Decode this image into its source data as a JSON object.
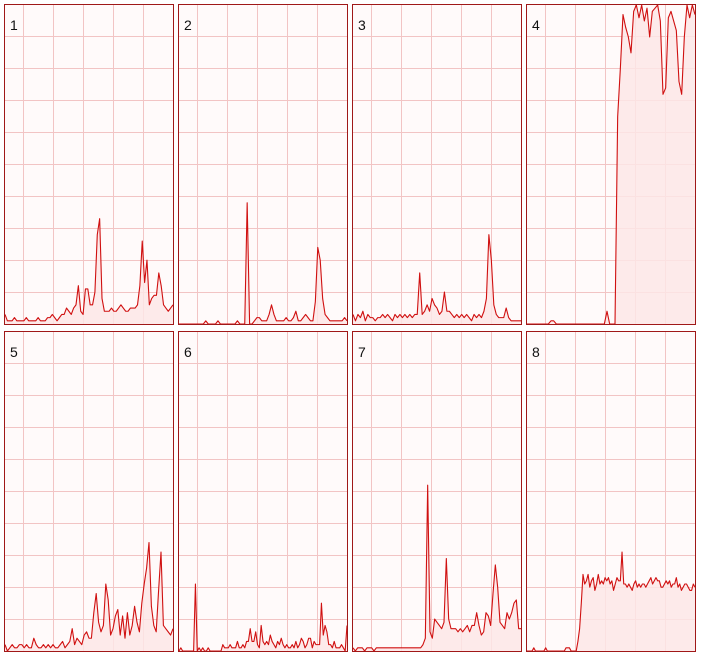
{
  "colors": {
    "line": "#d01010",
    "fill": "#fde6e6",
    "grid": "#f2c4c4",
    "border": "#a01818",
    "background": "#fffafa"
  },
  "chart_data": [
    {
      "type": "area",
      "label": "1",
      "ylim": [
        0,
        100
      ],
      "grid": true,
      "values": [
        3,
        1,
        1,
        1,
        2,
        1,
        1,
        1,
        1,
        2,
        1,
        1,
        1,
        1,
        2,
        1,
        1,
        1,
        2,
        2,
        3,
        2,
        1,
        2,
        3,
        3,
        5,
        4,
        3,
        5,
        6,
        12,
        4,
        3,
        11,
        11,
        6,
        6,
        10,
        28,
        33,
        8,
        4,
        4,
        4,
        5,
        4,
        4,
        5,
        6,
        5,
        4,
        4,
        5,
        5,
        5,
        6,
        12,
        26,
        13,
        20,
        6,
        8,
        9,
        9,
        16,
        12,
        6,
        5,
        4,
        5,
        6
      ]
    },
    {
      "type": "area",
      "label": "2",
      "ylim": [
        0,
        100
      ],
      "grid": true,
      "values": [
        0,
        0,
        0,
        0,
        0,
        0,
        0,
        0,
        0,
        0,
        0,
        1,
        0,
        0,
        0,
        0,
        1,
        0,
        0,
        0,
        0,
        0,
        0,
        0,
        1,
        0,
        0,
        0,
        38,
        0,
        0,
        1,
        2,
        2,
        1,
        1,
        1,
        3,
        6,
        3,
        1,
        1,
        1,
        1,
        2,
        1,
        1,
        2,
        4,
        1,
        1,
        2,
        3,
        2,
        1,
        1,
        7,
        24,
        20,
        8,
        3,
        2,
        1,
        1,
        1,
        1,
        1,
        1,
        2,
        1
      ]
    },
    {
      "type": "area",
      "label": "3",
      "ylim": [
        0,
        100
      ],
      "grid": true,
      "values": [
        3,
        1,
        3,
        2,
        4,
        1,
        3,
        2,
        2,
        1,
        2,
        2,
        3,
        2,
        3,
        2,
        1,
        3,
        2,
        3,
        2,
        3,
        2,
        3,
        2,
        3,
        3,
        16,
        3,
        4,
        6,
        4,
        8,
        6,
        5,
        3,
        4,
        10,
        4,
        4,
        3,
        2,
        3,
        2,
        3,
        2,
        3,
        2,
        1,
        3,
        2,
        3,
        2,
        4,
        8,
        28,
        20,
        6,
        3,
        2,
        2,
        2,
        5,
        2,
        1,
        1,
        1,
        1,
        1
      ]
    },
    {
      "type": "area",
      "label": "4",
      "ylim": [
        0,
        100
      ],
      "grid": true,
      "values": [
        0,
        0,
        0,
        0,
        0,
        0,
        0,
        0,
        0,
        1,
        1,
        0,
        0,
        0,
        0,
        0,
        0,
        0,
        0,
        0,
        0,
        0,
        0,
        0,
        0,
        0,
        0,
        0,
        0,
        0,
        4,
        0,
        0,
        0,
        65,
        80,
        97,
        93,
        90,
        85,
        98,
        100,
        96,
        100,
        95,
        99,
        90,
        98,
        99,
        100,
        95,
        72,
        74,
        96,
        98,
        95,
        92,
        76,
        72,
        90,
        100,
        96,
        100,
        97
      ]
    },
    {
      "type": "area",
      "label": "5",
      "ylim": [
        0,
        100
      ],
      "grid": true,
      "values": [
        2,
        0,
        1,
        2,
        1,
        1,
        2,
        2,
        1,
        2,
        1,
        1,
        4,
        2,
        1,
        1,
        2,
        1,
        2,
        1,
        2,
        1,
        1,
        2,
        3,
        1,
        2,
        3,
        7,
        2,
        4,
        3,
        2,
        5,
        6,
        4,
        4,
        12,
        18,
        9,
        6,
        8,
        21,
        16,
        5,
        7,
        11,
        13,
        5,
        11,
        4,
        12,
        5,
        8,
        14,
        9,
        6,
        15,
        21,
        26,
        34,
        14,
        8,
        6,
        19,
        31,
        8,
        7,
        6,
        5,
        7
      ]
    },
    {
      "type": "area",
      "label": "6",
      "ylim": [
        0,
        100
      ],
      "grid": true,
      "values": [
        0,
        1,
        0,
        0,
        0,
        0,
        0,
        0,
        0,
        21,
        0,
        1,
        0,
        1,
        0,
        0,
        1,
        0,
        0,
        0,
        0,
        0,
        0,
        0,
        2,
        1,
        1,
        1,
        2,
        1,
        1,
        1,
        3,
        1,
        1,
        2,
        1,
        3,
        3,
        7,
        3,
        3,
        6,
        2,
        1,
        8,
        3,
        2,
        3,
        2,
        5,
        3,
        2,
        1,
        3,
        2,
        4,
        2,
        1,
        2,
        1,
        1,
        2,
        1,
        3,
        1,
        2,
        4,
        3,
        1,
        2,
        4,
        4,
        1,
        3,
        2,
        2,
        2,
        15,
        5,
        8,
        6,
        2,
        2,
        1,
        3,
        1,
        1,
        1,
        2,
        1,
        0,
        8
      ]
    },
    {
      "type": "area",
      "label": "7",
      "ylim": [
        0,
        100
      ],
      "grid": true,
      "values": [
        1,
        0,
        1,
        1,
        1,
        0,
        1,
        1,
        1,
        0,
        1,
        1,
        1,
        1,
        1,
        1,
        1,
        1,
        1,
        1,
        1,
        1,
        1,
        1,
        1,
        1,
        1,
        1,
        1,
        1,
        2,
        4,
        52,
        6,
        4,
        10,
        9,
        8,
        7,
        9,
        29,
        10,
        7,
        7,
        7,
        6,
        7,
        6,
        7,
        8,
        6,
        8,
        8,
        12,
        8,
        5,
        6,
        12,
        11,
        8,
        18,
        27,
        20,
        9,
        8,
        7,
        12,
        10,
        12,
        15,
        16,
        7,
        7
      ]
    },
    {
      "type": "area",
      "label": "8",
      "ylim": [
        0,
        100
      ],
      "grid": true,
      "values": [
        0,
        0,
        0,
        0,
        1,
        0,
        0,
        0,
        0,
        0,
        0,
        1,
        0,
        0,
        0,
        0,
        0,
        0,
        0,
        0,
        0,
        0,
        0,
        1,
        1,
        1,
        0,
        0,
        0,
        0,
        3,
        7,
        15,
        24,
        21,
        22,
        24,
        20,
        22,
        23,
        19,
        21,
        24,
        21,
        22,
        21,
        23,
        22,
        23,
        21,
        22,
        19,
        21,
        23,
        22,
        22,
        31,
        21,
        21,
        20,
        21,
        20,
        19,
        21,
        22,
        20,
        21,
        20,
        21,
        21,
        20,
        21,
        22,
        23,
        21,
        22,
        23,
        22,
        22,
        20,
        20,
        21,
        22,
        21,
        22,
        20,
        21,
        21,
        23,
        20,
        21,
        19,
        20,
        21,
        21,
        20,
        19,
        19,
        21,
        20
      ]
    }
  ]
}
